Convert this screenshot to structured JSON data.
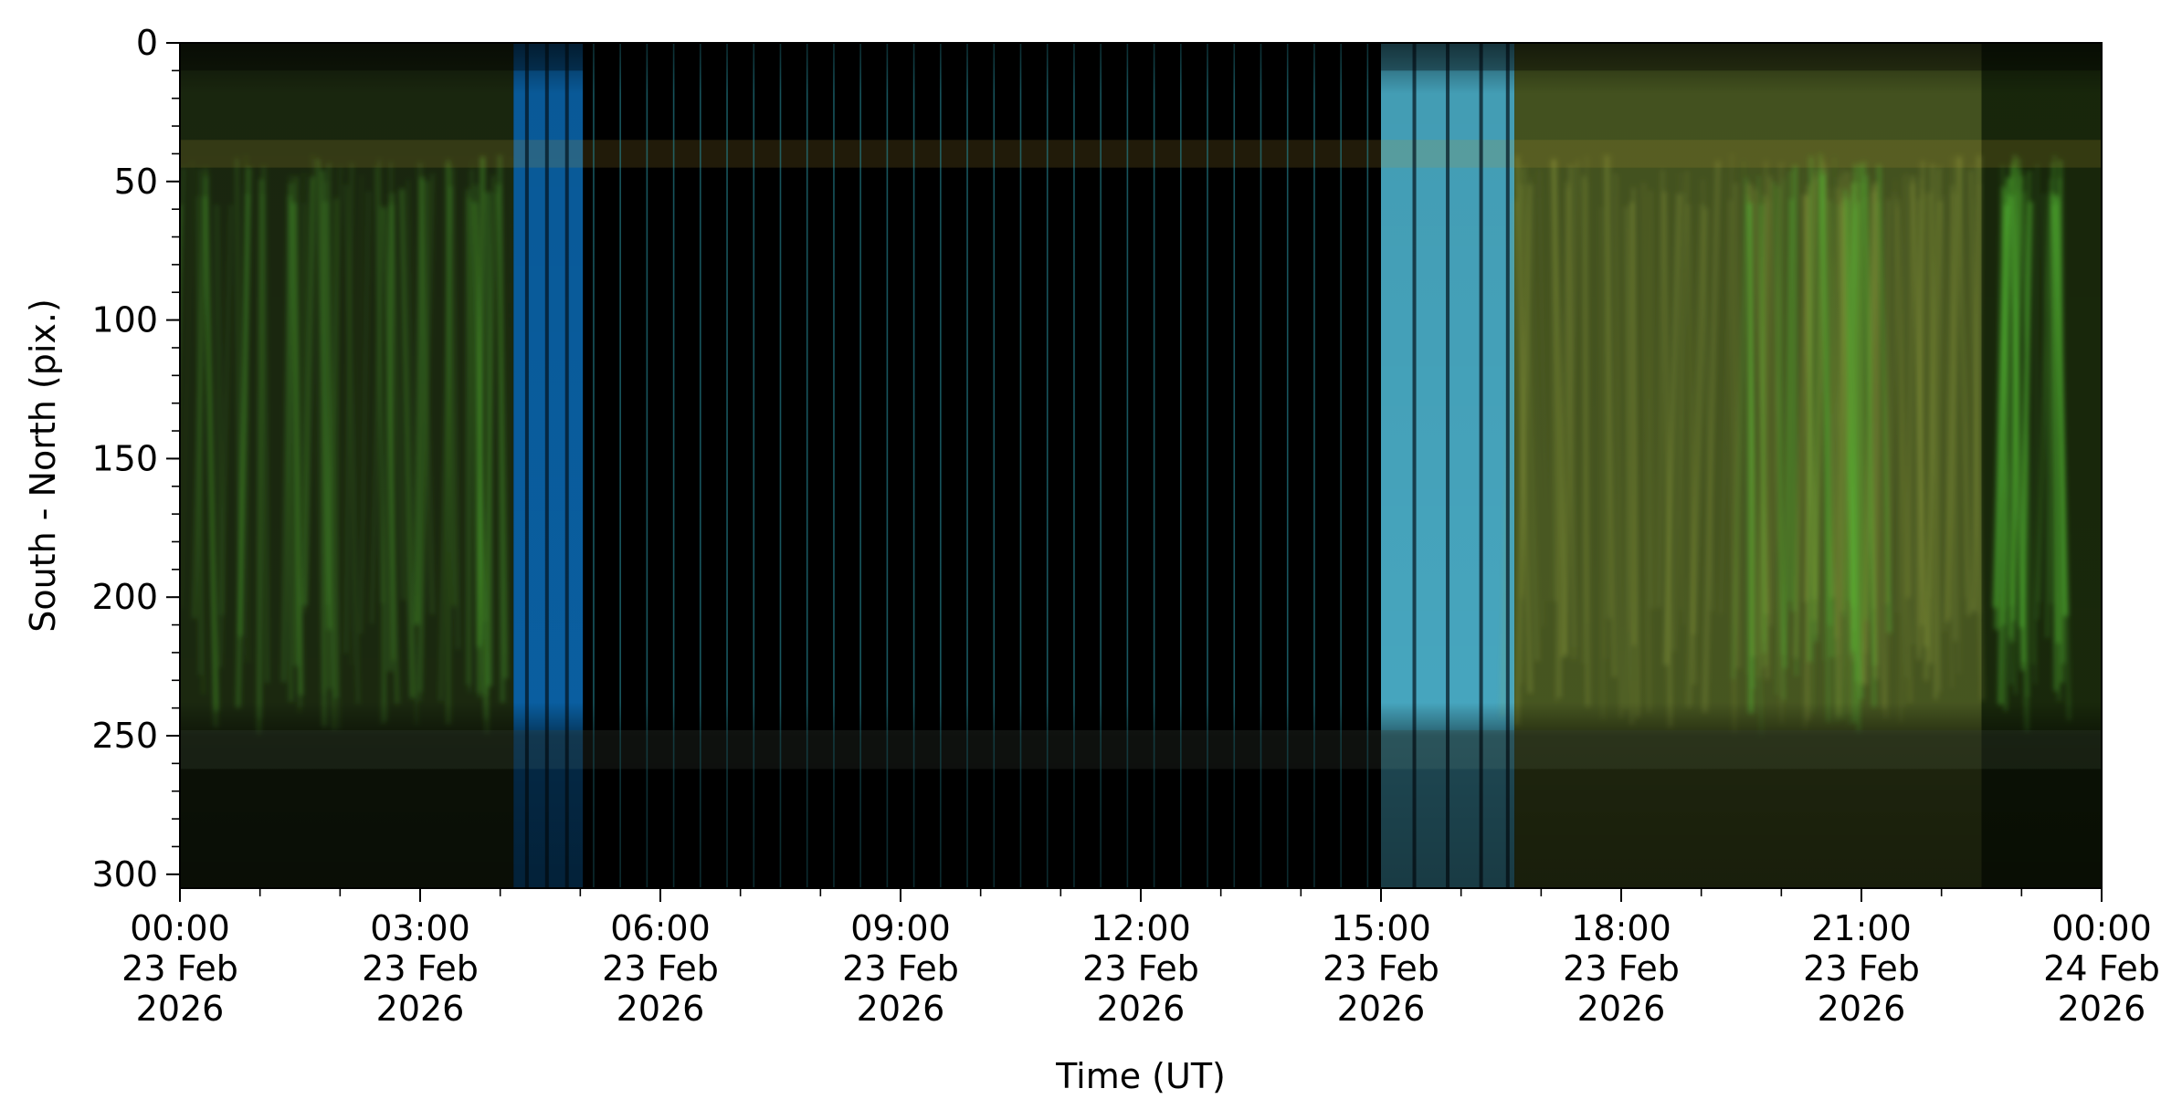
{
  "chart_data": {
    "type": "heatmap",
    "title": "",
    "xlabel": "Time (UT)",
    "ylabel": "South - North (pix.)",
    "x_range": [
      "2026-02-23T00:00",
      "2026-02-24T00:00"
    ],
    "ylim": [
      305,
      0
    ],
    "y_inverted": true,
    "grid": false,
    "x_ticks": [
      {
        "t": "2026-02-23T00:00",
        "label": [
          "00:00",
          "23 Feb",
          "2026"
        ]
      },
      {
        "t": "2026-02-23T03:00",
        "label": [
          "03:00",
          "23 Feb",
          "2026"
        ]
      },
      {
        "t": "2026-02-23T06:00",
        "label": [
          "06:00",
          "23 Feb",
          "2026"
        ]
      },
      {
        "t": "2026-02-23T09:00",
        "label": [
          "09:00",
          "23 Feb",
          "2026"
        ]
      },
      {
        "t": "2026-02-23T12:00",
        "label": [
          "12:00",
          "23 Feb",
          "2026"
        ]
      },
      {
        "t": "2026-02-23T15:00",
        "label": [
          "15:00",
          "23 Feb",
          "2026"
        ]
      },
      {
        "t": "2026-02-23T18:00",
        "label": [
          "18:00",
          "23 Feb",
          "2026"
        ]
      },
      {
        "t": "2026-02-23T21:00",
        "label": [
          "21:00",
          "23 Feb",
          "2026"
        ]
      },
      {
        "t": "2026-02-24T00:00",
        "label": [
          "00:00",
          "24 Feb",
          "2026"
        ]
      }
    ],
    "x_minor_tick_minutes": 60,
    "y_ticks": [
      0,
      50,
      100,
      150,
      200,
      250,
      300
    ],
    "y_minor_step": 10,
    "segments": [
      {
        "start": "2026-02-23T00:00",
        "end": "2026-02-23T04:10",
        "color": "#1c2a10",
        "description": "aurora green"
      },
      {
        "start": "2026-02-23T04:10",
        "end": "2026-02-23T05:02",
        "color": "#0a63a8",
        "description": "twilight blue"
      },
      {
        "start": "2026-02-23T05:02",
        "end": "2026-02-23T15:00",
        "color": "#000000",
        "description": "daylight gap"
      },
      {
        "start": "2026-02-23T15:00",
        "end": "2026-02-23T16:40",
        "color": "#4aaec8",
        "description": "twilight cyan"
      },
      {
        "start": "2026-02-23T16:40",
        "end": "2026-02-23T22:30",
        "color": "#4a5a22",
        "description": "aurora yellow-green"
      },
      {
        "start": "2026-02-23T22:30",
        "end": "2026-02-24T00:00",
        "color": "#1a2a0c",
        "description": "aurora green"
      }
    ],
    "colors": {
      "green": "#5fd23a",
      "blue": "#1e88d8",
      "cyan": "#8fe6f2",
      "yellow": "#c9a63a",
      "black": "#000000"
    }
  }
}
